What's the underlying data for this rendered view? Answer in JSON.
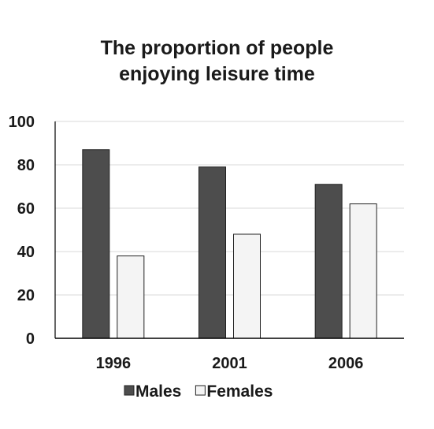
{
  "chart_data": {
    "type": "bar",
    "title_lines": [
      "The proportion of people",
      "enjoying leisure time"
    ],
    "categories": [
      "1996",
      "2001",
      "2006"
    ],
    "series": [
      {
        "name": "Males",
        "values": [
          87,
          79,
          71
        ],
        "color": "#4d4d4d"
      },
      {
        "name": "Females",
        "values": [
          38,
          48,
          62
        ],
        "color": "#f4f4f4"
      }
    ],
    "xlabel": "",
    "ylabel": "",
    "ylim": [
      0,
      100
    ],
    "yticks": [
      0,
      20,
      40,
      60,
      80,
      100
    ],
    "grid": true,
    "legend": "bottom-center"
  }
}
